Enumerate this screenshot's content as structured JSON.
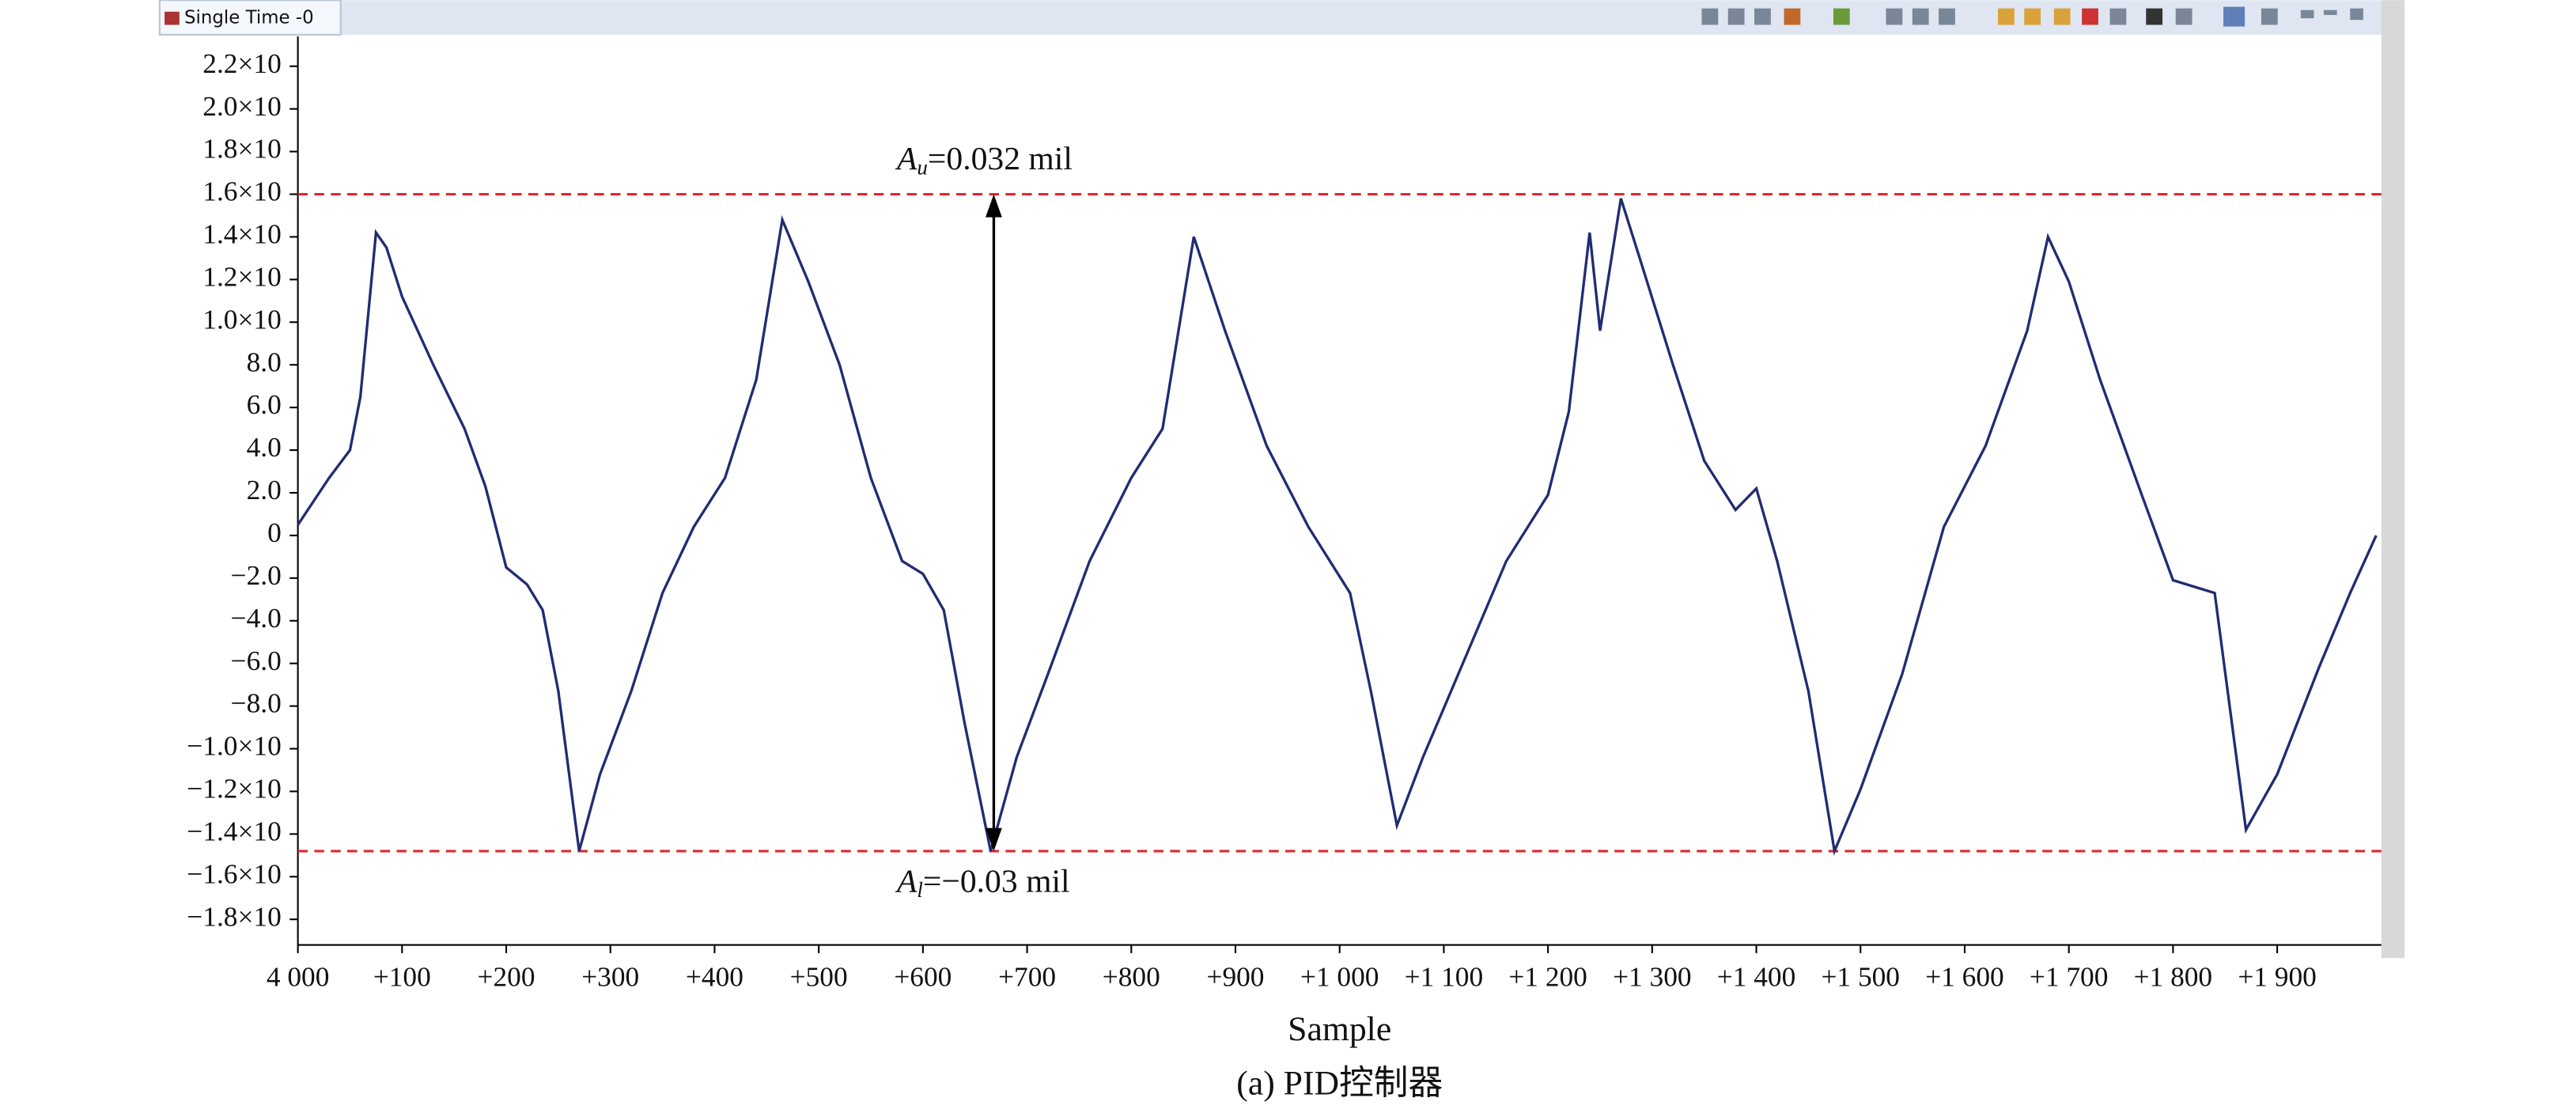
{
  "ui": {
    "tab_title": "Single Time -0"
  },
  "chart_data": {
    "type": "line",
    "x_label": "Sample",
    "caption": "(a) PID控制器",
    "xlim": [
      4000,
      6000
    ],
    "ylim": [
      -19.2,
      23.4
    ],
    "xticks": [
      {
        "value": 4000,
        "label": "4 000"
      },
      {
        "value": 4100,
        "label": "+100"
      },
      {
        "value": 4200,
        "label": "+200"
      },
      {
        "value": 4300,
        "label": "+300"
      },
      {
        "value": 4400,
        "label": "+400"
      },
      {
        "value": 4500,
        "label": "+500"
      },
      {
        "value": 4600,
        "label": "+600"
      },
      {
        "value": 4700,
        "label": "+700"
      },
      {
        "value": 4800,
        "label": "+800"
      },
      {
        "value": 4900,
        "label": "+900"
      },
      {
        "value": 5000,
        "label": "+1 000"
      },
      {
        "value": 5100,
        "label": "+1 100"
      },
      {
        "value": 5200,
        "label": "+1 200"
      },
      {
        "value": 5300,
        "label": "+1 300"
      },
      {
        "value": 5400,
        "label": "+1 400"
      },
      {
        "value": 5500,
        "label": "+1 500"
      },
      {
        "value": 5600,
        "label": "+1 600"
      },
      {
        "value": 5700,
        "label": "+1 700"
      },
      {
        "value": 5800,
        "label": "+1 800"
      },
      {
        "value": 5900,
        "label": "+1 900"
      }
    ],
    "yticks": [
      {
        "value": 22,
        "label": "2.2×10"
      },
      {
        "value": 20,
        "label": "2.0×10"
      },
      {
        "value": 18,
        "label": "1.8×10"
      },
      {
        "value": 16,
        "label": "1.6×10"
      },
      {
        "value": 14,
        "label": "1.4×10"
      },
      {
        "value": 12,
        "label": "1.2×10"
      },
      {
        "value": 10,
        "label": "1.0×10"
      },
      {
        "value": 8,
        "label": "8.0"
      },
      {
        "value": 6,
        "label": "6.0"
      },
      {
        "value": 4,
        "label": "4.0"
      },
      {
        "value": 2,
        "label": "2.0"
      },
      0,
      {
        "value": -2,
        "label": "−2.0"
      },
      {
        "value": -4,
        "label": "−4.0"
      },
      {
        "value": -6,
        "label": "−6.0"
      },
      {
        "value": -8,
        "label": "−8.0"
      },
      {
        "value": -10,
        "label": "−1.0×10"
      },
      {
        "value": -12,
        "label": "−1.2×10"
      },
      {
        "value": -14,
        "label": "−1.4×10"
      },
      {
        "value": -16,
        "label": "−1.6×10"
      },
      {
        "value": -18,
        "label": "−1.8×10"
      }
    ],
    "x": [
      4000,
      4030,
      4050,
      4060,
      4075,
      4085,
      4100,
      4130,
      4160,
      4180,
      4200,
      4220,
      4235,
      4250,
      4270,
      4290,
      4320,
      4350,
      4380,
      4410,
      4440,
      4465,
      4490,
      4520,
      4550,
      4580,
      4600,
      4620,
      4640,
      4665,
      4690,
      4720,
      4760,
      4800,
      4830,
      4860,
      4890,
      4930,
      4970,
      5010,
      5030,
      5055,
      5080,
      5120,
      5160,
      5200,
      5220,
      5240,
      5250,
      5260,
      5270,
      5290,
      5320,
      5350,
      5380,
      5400,
      5420,
      5450,
      5475,
      5500,
      5540,
      5580,
      5620,
      5660,
      5680,
      5700,
      5730,
      5770,
      5800,
      5840,
      5870,
      5900,
      5940,
      5970,
      5995
    ],
    "series": [
      {
        "color": "#222c72",
        "values": [
          0.5,
          2.7,
          4,
          6.5,
          14.2,
          13.5,
          11.2,
          8,
          5,
          2.3,
          -1.5,
          -2.3,
          -3.5,
          -7.3,
          -14.8,
          -11.2,
          -7.3,
          -2.7,
          0.4,
          2.7,
          7.3,
          14.8,
          11.9,
          8,
          2.7,
          -1.2,
          -1.8,
          -3.5,
          -8.8,
          -14.8,
          -10.4,
          -6.5,
          -1.2,
          2.7,
          5,
          14,
          9.6,
          4.2,
          0.4,
          -2.7,
          -7.3,
          -13.6,
          -10.4,
          -5.8,
          -1.2,
          1.9,
          5.8,
          14.2,
          9.6,
          12.7,
          15.8,
          12.7,
          8,
          3.5,
          1.2,
          2.2,
          -1.2,
          -7.3,
          -14.8,
          -11.9,
          -6.5,
          0.4,
          4.2,
          9.6,
          14,
          11.9,
          7.3,
          1.9,
          -2.1,
          -2.7,
          -13.8,
          -11.2,
          -6.2,
          -2.7,
          0
        ]
      }
    ],
    "reference_lines": [
      {
        "value": 16,
        "color": "#e02830"
      },
      {
        "value": -14.8,
        "color": "#e02830"
      }
    ],
    "arrow": {
      "x": 4668,
      "from": -14.8,
      "to": 16
    },
    "annotations": [
      {
        "symbol": "A",
        "subscript": "u",
        "text": "=0.032 mil",
        "y": 16
      },
      {
        "symbol": "A",
        "subscript": "l",
        "text": "=−0.03 mil",
        "y": -14.8
      }
    ]
  }
}
